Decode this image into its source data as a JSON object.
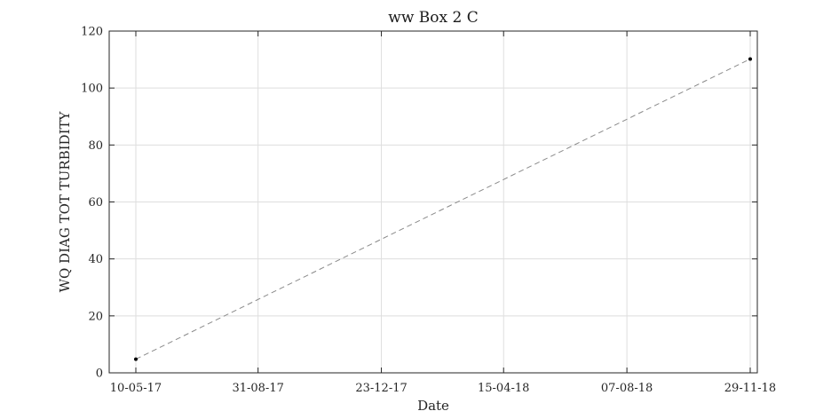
{
  "chart_data": {
    "type": "line",
    "title": "ww Box 2 C",
    "xlabel": "Date",
    "ylabel": "WQ DIAG TOT TURBIDITY",
    "x_ticks": [
      "10-05-17",
      "31-08-17",
      "23-12-17",
      "15-04-18",
      "07-08-18",
      "29-11-18"
    ],
    "ylim": [
      0,
      120
    ],
    "y_ticks": [
      0,
      20,
      40,
      60,
      80,
      100,
      120
    ],
    "grid": true,
    "series": [
      {
        "x": [
          "10-05-17",
          "29-11-18"
        ],
        "y": [
          4.8,
          110.2
        ],
        "line_style": "dashed",
        "line_color": "#8a8a8a",
        "marker_color": "#000000"
      }
    ]
  }
}
